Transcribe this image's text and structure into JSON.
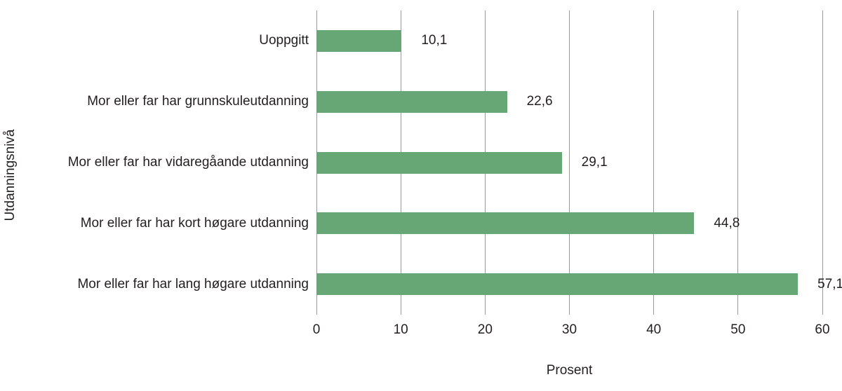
{
  "chart_data": {
    "type": "bar",
    "orientation": "horizontal",
    "categories": [
      "Uoppgitt",
      "Mor eller far har grunnskuleutdanning",
      "Mor eller far har vidaregåande utdanning",
      "Mor eller far har kort høgare utdanning",
      "Mor eller far har lang høgare utdanning"
    ],
    "values": [
      10.1,
      22.6,
      29.1,
      44.8,
      57.1
    ],
    "value_labels": [
      "10,1",
      "22,6",
      "29,1",
      "44,8",
      "57,1"
    ],
    "title": "",
    "xlabel": "Prosent",
    "ylabel": "Utdanningsnivå",
    "xlim": [
      0,
      60
    ],
    "xticks": [
      0,
      10,
      20,
      30,
      40,
      50,
      60
    ],
    "grid": "vertical-only",
    "legend": "none",
    "bar_color": "#67a776",
    "gridline_color": "#9b9b9b",
    "text_color": "#231f20"
  }
}
